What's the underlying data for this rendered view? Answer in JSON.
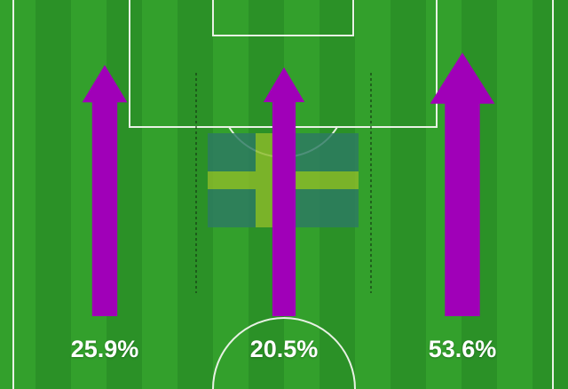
{
  "colors": {
    "pitch_light": "#33a02c",
    "pitch_dark": "#2b9127",
    "lines": "#e8f1e4",
    "arrow": "#a000b8",
    "flag_blue": "#2d7a63",
    "flag_yellow": "#8cbb2a"
  },
  "flag_icon": "sweden-flag",
  "chart_data": {
    "type": "bar",
    "categories": [
      "left",
      "centre",
      "right"
    ],
    "values": [
      25.9,
      20.5,
      53.6
    ],
    "labels": [
      "25.9%",
      "20.5%",
      "53.6%"
    ],
    "unit": "%"
  }
}
